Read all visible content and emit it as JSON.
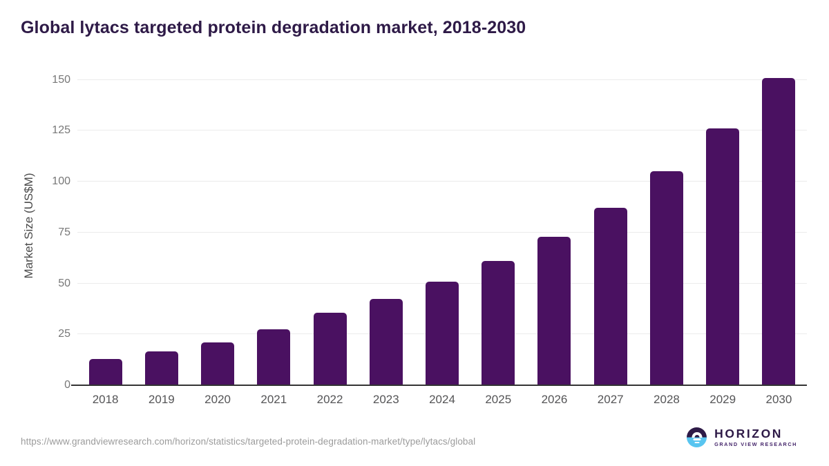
{
  "page": {
    "title": "Global lytacs targeted protein degradation market, 2018-2030",
    "source_url": "https://www.grandviewresearch.com/horizon/statistics/targeted-protein-degradation-market/type/lytacs/global"
  },
  "branding": {
    "logo_name": "HORIZON",
    "logo_subtitle": "GRAND VIEW RESEARCH",
    "logo_icon": "horizon-sun-over-water-icon",
    "logo_top_color": "#2e1a47",
    "logo_bottom_color": "#58c5f0"
  },
  "colors": {
    "bar": "#4a1161",
    "title_text": "#2e1a47",
    "y_axis_title": "#4a4a4a",
    "y_tick_labels": "#777777",
    "x_tick_labels": "#545456",
    "gridline": "#ebebeb",
    "axis_baseline": "#333333",
    "source_url_text": "#9b9b9b",
    "background": "#ffffff"
  },
  "chart_data": {
    "type": "bar",
    "title": "Global lytacs targeted protein degradation market, 2018-2030",
    "categories": [
      "2018",
      "2019",
      "2020",
      "2021",
      "2022",
      "2023",
      "2024",
      "2025",
      "2026",
      "2027",
      "2028",
      "2029",
      "2030"
    ],
    "values": [
      13,
      16.5,
      21,
      27.5,
      35.5,
      42.5,
      51,
      61,
      73,
      87,
      105,
      126,
      151
    ],
    "xlabel": "",
    "ylabel": "Market Size (US$M)",
    "yticks": [
      0,
      25,
      50,
      75,
      100,
      125,
      150
    ],
    "ylim": [
      0,
      157
    ],
    "grid": "horizontal",
    "legend": "none",
    "bar_color": "#4a1161"
  }
}
